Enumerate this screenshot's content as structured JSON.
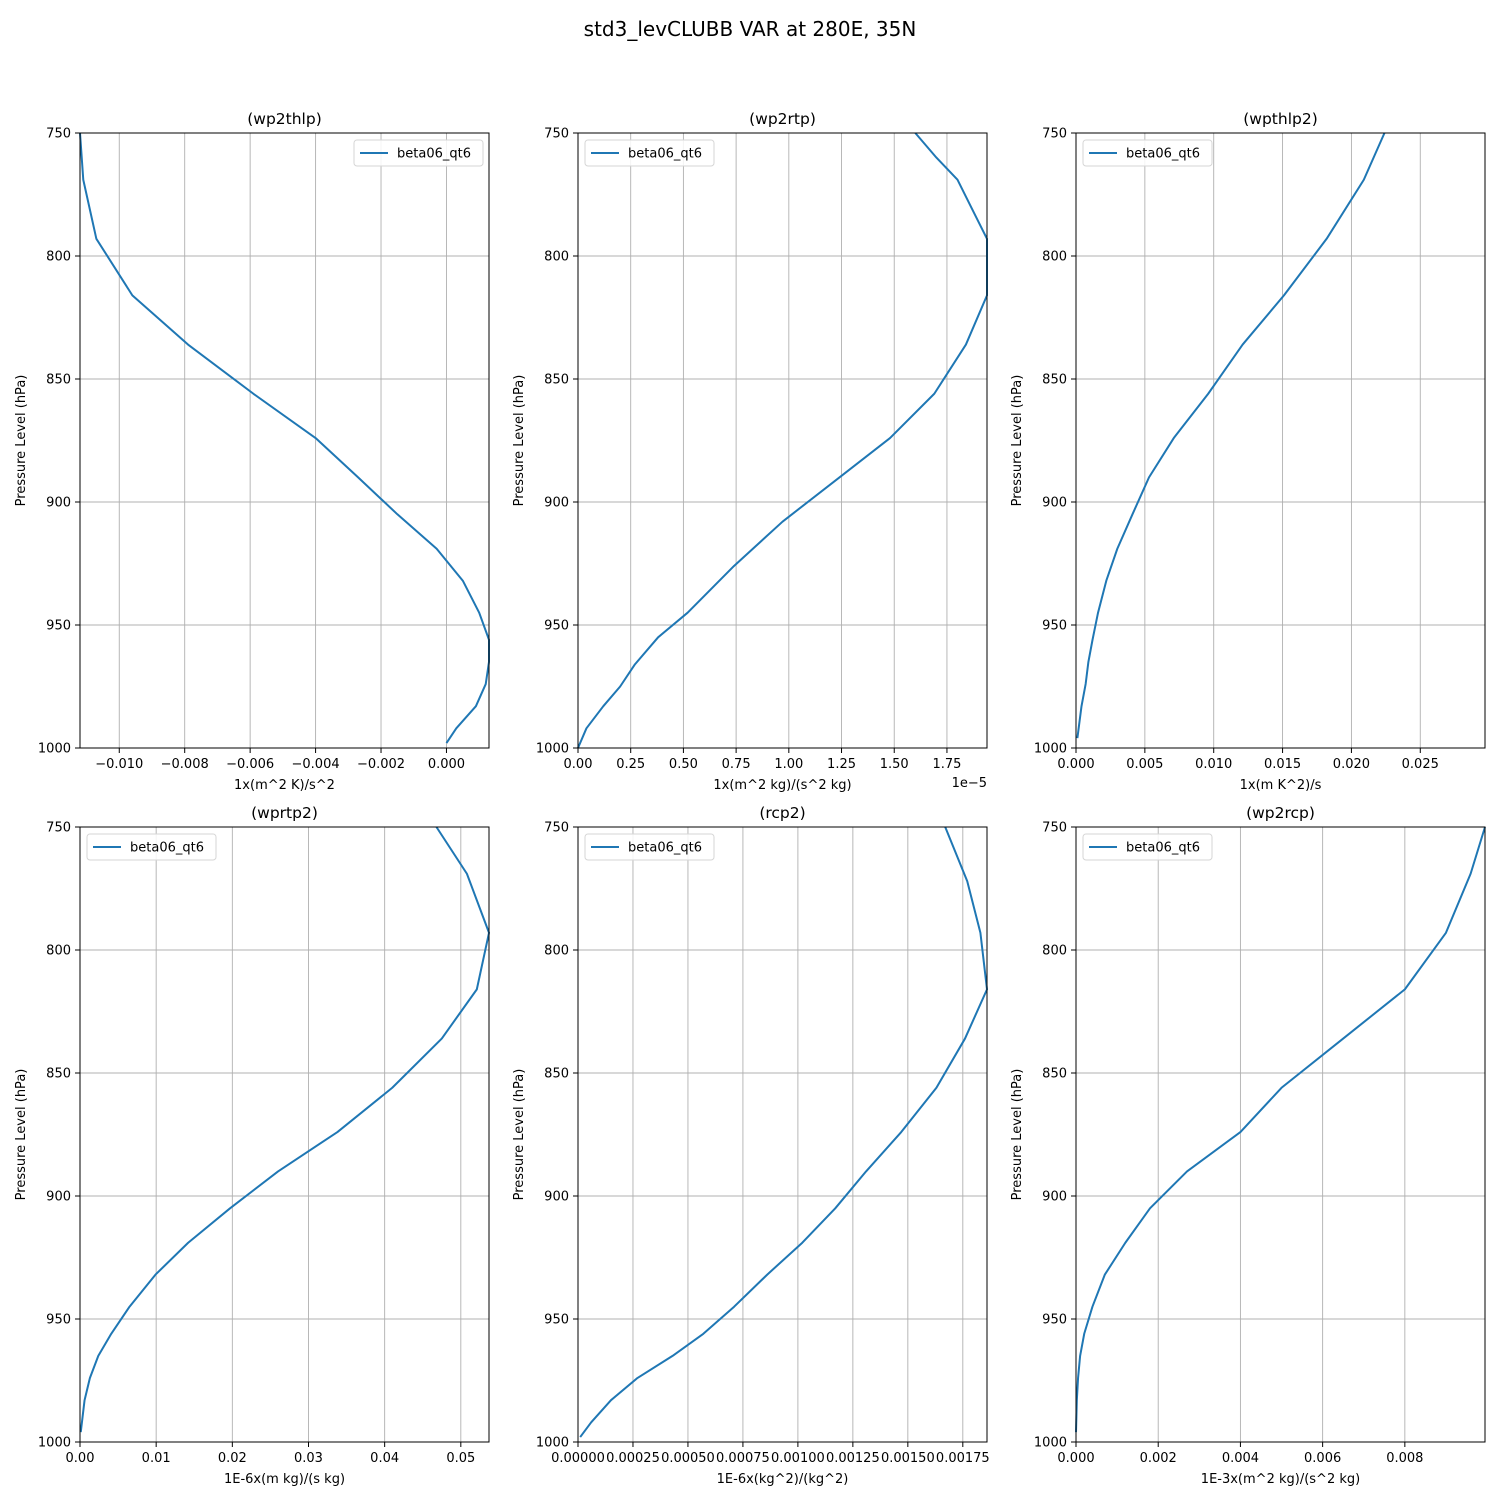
{
  "figure": {
    "title": "std3_levCLUBB VAR at 280E, 35N"
  },
  "chart_data": [
    {
      "type": "line",
      "title": "(wp2thlp)",
      "xlabel": "1x(m^2 K)/s^2",
      "ylabel": "Pressure Level (hPa)",
      "x_offset_label": "",
      "xlim": [
        -0.0112,
        0.0013
      ],
      "ylim": [
        1000,
        750
      ],
      "xticks": [
        -0.01,
        -0.008,
        -0.006,
        -0.004,
        -0.002,
        0.0
      ],
      "xtick_labels": [
        "−0.010",
        "−0.008",
        "−0.006",
        "−0.004",
        "−0.002",
        "0.000"
      ],
      "yticks": [
        750,
        800,
        850,
        900,
        950,
        1000
      ],
      "ytick_labels": [
        "750",
        "800",
        "850",
        "900",
        "950",
        "1000"
      ],
      "legend": {
        "position": "upper right"
      },
      "series": [
        {
          "name": "beta06_qt6",
          "x": [
            -0.0112,
            -0.0111,
            -0.0107,
            -0.0096,
            -0.0079,
            -0.0059,
            -0.004,
            -0.0027,
            -0.0015,
            -0.0003,
            0.0005,
            0.001,
            0.0013,
            0.0013,
            0.0012,
            0.0009,
            0.0003,
            0.0
          ],
          "y": [
            750,
            769,
            793,
            816,
            836,
            856,
            874,
            890,
            905,
            919,
            932,
            945,
            956,
            965,
            974,
            983,
            992,
            998
          ]
        }
      ]
    },
    {
      "type": "line",
      "title": "(wp2rtp)",
      "xlabel": "1x(m^2 kg)/(s^2 kg)",
      "ylabel": "Pressure Level (hPa)",
      "x_offset_label": "1e−5",
      "xlim": [
        0,
        1.94
      ],
      "ylim": [
        1000,
        750
      ],
      "xticks": [
        0.0,
        0.25,
        0.5,
        0.75,
        1.0,
        1.25,
        1.5,
        1.75
      ],
      "xtick_labels": [
        "0.00",
        "0.25",
        "0.50",
        "0.75",
        "1.00",
        "1.25",
        "1.50",
        "1.75"
      ],
      "yticks": [
        750,
        800,
        850,
        900,
        950,
        1000
      ],
      "ytick_labels": [
        "750",
        "800",
        "850",
        "900",
        "950",
        "1000"
      ],
      "legend": {
        "position": "upper left"
      },
      "series": [
        {
          "name": "beta06_qt6",
          "x": [
            1.6,
            1.7,
            1.8,
            1.87,
            1.94,
            1.94,
            1.84,
            1.69,
            1.48,
            1.24,
            0.97,
            0.74,
            0.52,
            0.38,
            0.27,
            0.2,
            0.12,
            0.04,
            0.0
          ],
          "y": [
            750,
            760,
            769,
            781,
            793,
            816,
            836,
            856,
            874,
            890,
            908,
            926,
            945,
            955,
            966,
            975,
            983,
            992,
            1000
          ]
        }
      ]
    },
    {
      "type": "line",
      "title": "(wpthlp2)",
      "xlabel": "1x(m K^2)/s",
      "ylabel": "Pressure Level (hPa)",
      "x_offset_label": "",
      "xlim": [
        0,
        0.0297
      ],
      "ylim": [
        1000,
        750
      ],
      "xticks": [
        0.0,
        0.005,
        0.01,
        0.015,
        0.02,
        0.025
      ],
      "xtick_labels": [
        "0.000",
        "0.005",
        "0.010",
        "0.015",
        "0.020",
        "0.025"
      ],
      "yticks": [
        750,
        800,
        850,
        900,
        950,
        1000
      ],
      "ytick_labels": [
        "750",
        "800",
        "850",
        "900",
        "950",
        "1000"
      ],
      "legend": {
        "position": "upper left"
      },
      "series": [
        {
          "name": "beta06_qt6",
          "x": [
            0.0224,
            0.0209,
            0.0182,
            0.0151,
            0.0121,
            0.0096,
            0.0071,
            0.0053,
            0.0041,
            0.003,
            0.0022,
            0.0016,
            0.0012,
            0.0009,
            0.0007,
            0.0004,
            0.0001
          ],
          "y": [
            750,
            769,
            793,
            816,
            836,
            856,
            874,
            890,
            905,
            919,
            932,
            945,
            956,
            965,
            974,
            983,
            996
          ]
        }
      ]
    },
    {
      "type": "line",
      "title": "(wprtp2)",
      "xlabel": "1E-6x(m kg)/(s kg)",
      "ylabel": "Pressure Level (hPa)",
      "x_offset_label": "",
      "xlim": [
        0,
        0.0537
      ],
      "ylim": [
        1000,
        750
      ],
      "xticks": [
        0.0,
        0.01,
        0.02,
        0.03,
        0.04,
        0.05
      ],
      "xtick_labels": [
        "0.00",
        "0.01",
        "0.02",
        "0.03",
        "0.04",
        "0.05"
      ],
      "yticks": [
        750,
        800,
        850,
        900,
        950,
        1000
      ],
      "ytick_labels": [
        "750",
        "800",
        "850",
        "900",
        "950",
        "1000"
      ],
      "legend": {
        "position": "upper left"
      },
      "series": [
        {
          "name": "beta06_qt6",
          "x": [
            0.0468,
            0.0508,
            0.0537,
            0.0521,
            0.0475,
            0.041,
            0.0338,
            0.026,
            0.0197,
            0.0142,
            0.0099,
            0.0065,
            0.0041,
            0.0024,
            0.0013,
            0.0006,
            0.0001
          ],
          "y": [
            750,
            769,
            793,
            816,
            836,
            856,
            874,
            890,
            905,
            919,
            932,
            945,
            956,
            965,
            974,
            983,
            996
          ]
        }
      ]
    },
    {
      "type": "line",
      "title": "(rcp2)",
      "xlabel": "1E-6x(kg^2)/(kg^2)",
      "ylabel": "Pressure Level (hPa)",
      "x_offset_label": "",
      "xlim": [
        0,
        0.00186
      ],
      "ylim": [
        1000,
        750
      ],
      "xticks": [
        0.0,
        0.00025,
        0.0005,
        0.00075,
        0.001,
        0.00125,
        0.0015,
        0.00175
      ],
      "xtick_labels": [
        "0.00000",
        "0.00025",
        "0.00050",
        "0.00075",
        "0.00100",
        "0.00125",
        "0.00150",
        "0.00175"
      ],
      "yticks": [
        750,
        800,
        850,
        900,
        950,
        1000
      ],
      "ytick_labels": [
        "750",
        "800",
        "850",
        "900",
        "950",
        "1000"
      ],
      "legend": {
        "position": "upper left"
      },
      "series": [
        {
          "name": "beta06_qt6",
          "x": [
            0.00167,
            0.00177,
            0.00183,
            0.00186,
            0.00176,
            0.00163,
            0.00147,
            0.00131,
            0.00117,
            0.00102,
            0.00086,
            0.00071,
            0.00057,
            0.00043,
            0.00027,
            0.00015,
            6e-05,
            1e-05
          ],
          "y": [
            750,
            772,
            793,
            816,
            836,
            856,
            874,
            890,
            905,
            919,
            932,
            945,
            956,
            965,
            974,
            983,
            992,
            998
          ]
        }
      ]
    },
    {
      "type": "line",
      "title": "(wp2rcp)",
      "xlabel": "1E-3x(m^2 kg)/(s^2 kg)",
      "ylabel": "Pressure Level (hPa)",
      "x_offset_label": "",
      "xlim": [
        0,
        0.00995
      ],
      "ylim": [
        1000,
        750
      ],
      "xticks": [
        0.0,
        0.002,
        0.004,
        0.006,
        0.008
      ],
      "xtick_labels": [
        "0.000",
        "0.002",
        "0.004",
        "0.006",
        "0.008"
      ],
      "yticks": [
        750,
        800,
        850,
        900,
        950,
        1000
      ],
      "ytick_labels": [
        "750",
        "800",
        "850",
        "900",
        "950",
        "1000"
      ],
      "legend": {
        "position": "upper left"
      },
      "series": [
        {
          "name": "beta06_qt6",
          "x": [
            0.00995,
            0.0096,
            0.009,
            0.008,
            0.0065,
            0.005,
            0.004,
            0.0027,
            0.0018,
            0.0012,
            0.0007,
            0.0004,
            0.0002,
            0.0001,
            5e-05,
            2e-05,
            0.0
          ],
          "y": [
            750,
            769,
            793,
            816,
            836,
            856,
            874,
            890,
            905,
            919,
            932,
            945,
            956,
            965,
            974,
            983,
            996
          ]
        }
      ]
    }
  ]
}
